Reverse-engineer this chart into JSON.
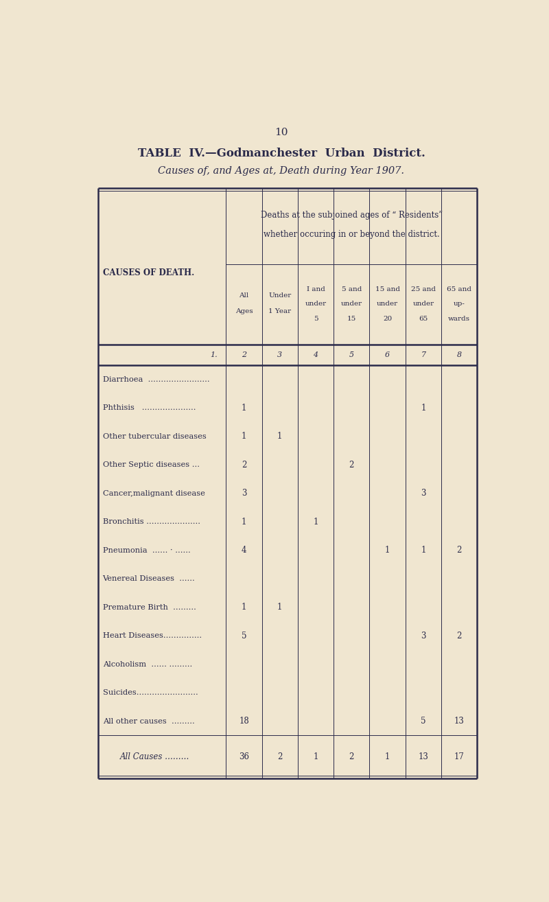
{
  "page_number": "10",
  "title_line1": "TABLE  IV.—Godmanchester  Urban  District.",
  "title_line2": "Causes of, and Ages at, Death during Year 1907.",
  "bg_color": "#f0e6d0",
  "text_color": "#2a2a4a",
  "col_numbers": [
    "2",
    "3",
    "4",
    "5",
    "6",
    "7",
    "8"
  ],
  "col_header_data": [
    [
      "All",
      "Ages"
    ],
    [
      "Under",
      "1 Year"
    ],
    [
      "I and",
      "under",
      "5"
    ],
    [
      "5 and",
      "under",
      "15"
    ],
    [
      "15 and",
      "under",
      "20"
    ],
    [
      "25 and",
      "under",
      "65"
    ],
    [
      "65 and",
      "up-",
      "wards"
    ]
  ],
  "rows": [
    {
      "label": "Diarrhoea  ……………………",
      "values": [
        "",
        "",
        "",
        "",
        "",
        "",
        ""
      ]
    },
    {
      "label": "Phthisis   …………………",
      "values": [
        "1",
        "",
        "",
        "",
        "",
        "1",
        ""
      ]
    },
    {
      "label": "Other tubercular diseases",
      "values": [
        "1",
        "1",
        "",
        "",
        "",
        "",
        ""
      ]
    },
    {
      "label": "Other Septic diseases …",
      "values": [
        "2",
        "",
        "",
        "2",
        "",
        "",
        ""
      ]
    },
    {
      "label": "Cancer,malignant disease",
      "values": [
        "3",
        "",
        "",
        "",
        "",
        "3",
        ""
      ]
    },
    {
      "label": "Bronchitis …………………",
      "values": [
        "1",
        "",
        "1",
        "",
        "",
        "",
        ""
      ]
    },
    {
      "label": "Pneumonia  …… · ……",
      "values": [
        "4",
        "",
        "",
        "",
        "1",
        "1",
        "2"
      ]
    },
    {
      "label": "Venereal Diseases  ……",
      "values": [
        "",
        "",
        "",
        "",
        "",
        "",
        ""
      ]
    },
    {
      "label": "Premature Birth  ………",
      "values": [
        "1",
        "1",
        "",
        "",
        "",
        "",
        ""
      ]
    },
    {
      "label": "Heart Diseases……………",
      "values": [
        "5",
        "",
        "",
        "",
        "",
        "3",
        "2"
      ]
    },
    {
      "label": "Alcoholism  …… ………",
      "values": [
        "",
        "",
        "",
        "",
        "",
        "",
        ""
      ]
    },
    {
      "label": "Suicides……………………",
      "values": [
        "",
        "",
        "",
        "",
        "",
        "",
        ""
      ]
    },
    {
      "label": "All other causes  ………",
      "values": [
        "18",
        "",
        "",
        "",
        "",
        "5",
        "13"
      ]
    }
  ],
  "totals_row": {
    "label": "All Causes ………",
    "values": [
      "36",
      "2",
      "1",
      "2",
      "1",
      "13",
      "17"
    ]
  }
}
